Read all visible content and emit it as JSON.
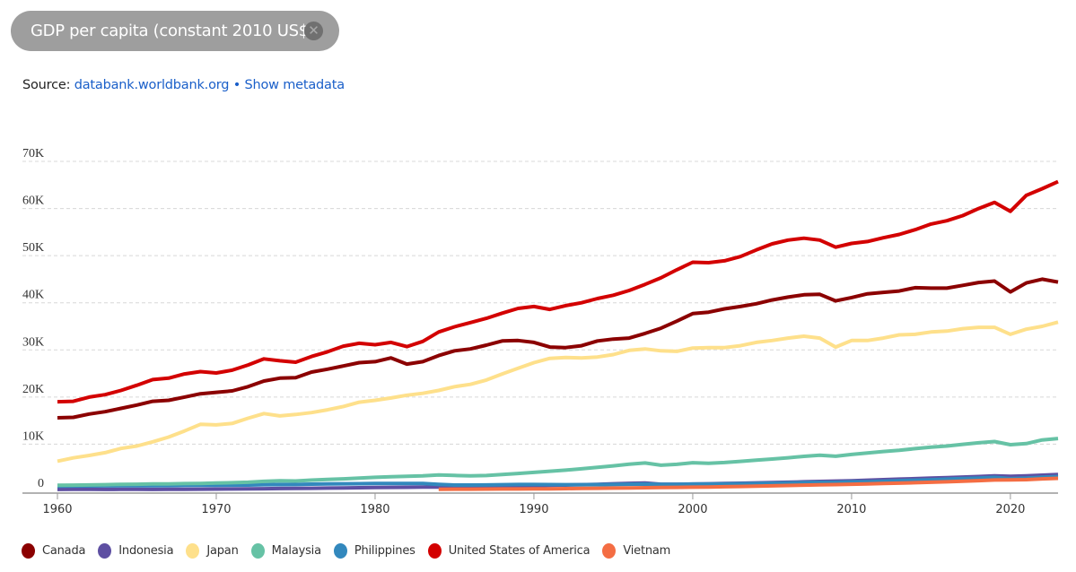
{
  "header": {
    "indicator_chip_label": "GDP per capita (constant 2010 US$)",
    "close_icon": "close-icon"
  },
  "source": {
    "prefix": "Source:",
    "link_label": "databank.worldbank.org",
    "separator": "•",
    "metadata_label": "Show metadata"
  },
  "chart_data": {
    "type": "line",
    "title": "GDP per capita (constant 2010 US$)",
    "xlabel": "",
    "ylabel": "",
    "xlim": [
      1960,
      2023
    ],
    "ylim": [
      0,
      70000
    ],
    "grid": true,
    "legend_position": "bottom-left",
    "x_ticks": [
      1960,
      1970,
      1980,
      1990,
      2000,
      2010,
      2020
    ],
    "x_tick_labels": [
      "1960",
      "1970",
      "1980",
      "1990",
      "2000",
      "2010",
      "2020"
    ],
    "y_ticks": [
      0,
      10000,
      20000,
      30000,
      40000,
      50000,
      60000,
      70000
    ],
    "y_tick_labels": [
      "0",
      "10K",
      "20K",
      "30K",
      "40K",
      "50K",
      "60K",
      "70K"
    ],
    "x": [
      1960,
      1961,
      1962,
      1963,
      1964,
      1965,
      1966,
      1967,
      1968,
      1969,
      1970,
      1971,
      1972,
      1973,
      1974,
      1975,
      1976,
      1977,
      1978,
      1979,
      1980,
      1981,
      1982,
      1983,
      1984,
      1985,
      1986,
      1987,
      1988,
      1989,
      1990,
      1991,
      1992,
      1993,
      1994,
      1995,
      1996,
      1997,
      1998,
      1999,
      2000,
      2001,
      2002,
      2003,
      2004,
      2005,
      2006,
      2007,
      2008,
      2009,
      2010,
      2011,
      2012,
      2013,
      2014,
      2015,
      2016,
      2017,
      2018,
      2019,
      2020,
      2021,
      2022,
      2023
    ],
    "series": [
      {
        "name": "Canada",
        "color": "#8b0000",
        "values": [
          15600,
          15700,
          16400,
          16900,
          17600,
          18300,
          19100,
          19300,
          20000,
          20700,
          21000,
          21300,
          22200,
          23400,
          24000,
          24100,
          25300,
          25900,
          26600,
          27300,
          27500,
          28300,
          27000,
          27500,
          28800,
          29800,
          30200,
          31000,
          31900,
          32000,
          31600,
          30600,
          30500,
          30900,
          31900,
          32300,
          32500,
          33500,
          34600,
          36100,
          37700,
          38000,
          38700,
          39200,
          39800,
          40600,
          41200,
          41700,
          41800,
          40400,
          41100,
          41900,
          42200,
          42500,
          43200,
          43100,
          43100,
          43700,
          44300,
          44600,
          42300,
          44200,
          45000,
          44400
        ]
      },
      {
        "name": "Indonesia",
        "color": "#5e4fa2",
        "values": [
          400,
          410,
          415,
          405,
          410,
          410,
          400,
          410,
          430,
          460,
          480,
          500,
          530,
          560,
          590,
          610,
          640,
          680,
          710,
          760,
          800,
          840,
          860,
          890,
          920,
          950,
          970,
          1010,
          1060,
          1120,
          1190,
          1260,
          1330,
          1410,
          1490,
          1590,
          1690,
          1750,
          1500,
          1500,
          1550,
          1600,
          1660,
          1710,
          1780,
          1860,
          1930,
          2020,
          2100,
          2160,
          2250,
          2360,
          2470,
          2580,
          2680,
          2790,
          2900,
          3020,
          3140,
          3270,
          3180,
          3280,
          3430,
          3580
        ]
      },
      {
        "name": "Japan",
        "color": "#fee08b",
        "values": [
          6400,
          7100,
          7600,
          8200,
          9100,
          9600,
          10500,
          11500,
          12800,
          14200,
          14100,
          14400,
          15500,
          16500,
          16000,
          16300,
          16700,
          17300,
          18000,
          18900,
          19300,
          19800,
          20400,
          20800,
          21400,
          22200,
          22700,
          23600,
          24900,
          26100,
          27300,
          28200,
          28400,
          28300,
          28500,
          29000,
          29900,
          30200,
          29800,
          29700,
          30400,
          30500,
          30500,
          30900,
          31600,
          32000,
          32500,
          32900,
          32500,
          30600,
          32000,
          32000,
          32500,
          33200,
          33300,
          33800,
          34000,
          34500,
          34800,
          34800,
          33300,
          34400,
          35000,
          35900
        ]
      },
      {
        "name": "Malaysia",
        "color": "#66c2a5",
        "values": [
          1300,
          1320,
          1360,
          1400,
          1460,
          1510,
          1560,
          1580,
          1640,
          1680,
          1760,
          1830,
          1930,
          2110,
          2230,
          2190,
          2380,
          2510,
          2650,
          2820,
          2970,
          3090,
          3190,
          3300,
          3470,
          3360,
          3280,
          3350,
          3560,
          3780,
          4010,
          4260,
          4480,
          4780,
          5080,
          5410,
          5740,
          6020,
          5530,
          5720,
          6070,
          5940,
          6110,
          6350,
          6610,
          6840,
          7120,
          7420,
          7660,
          7430,
          7820,
          8150,
          8440,
          8700,
          9050,
          9370,
          9610,
          9960,
          10300,
          10560,
          9890,
          10120,
          10900,
          11200
        ]
      },
      {
        "name": "Philippines",
        "color": "#3288bd",
        "values": [
          1100,
          1130,
          1150,
          1160,
          1180,
          1190,
          1200,
          1220,
          1250,
          1270,
          1290,
          1310,
          1340,
          1400,
          1420,
          1450,
          1530,
          1560,
          1590,
          1610,
          1650,
          1650,
          1670,
          1650,
          1480,
          1330,
          1330,
          1350,
          1410,
          1450,
          1450,
          1420,
          1400,
          1400,
          1430,
          1450,
          1500,
          1540,
          1480,
          1490,
          1540,
          1550,
          1570,
          1610,
          1680,
          1720,
          1780,
          1860,
          1900,
          1900,
          2010,
          2050,
          2150,
          2260,
          2360,
          2460,
          2580,
          2700,
          2820,
          2960,
          2690,
          2800,
          2990,
          3140
        ]
      },
      {
        "name": "United States of America",
        "color": "#d30000",
        "values": [
          19000,
          19100,
          20000,
          20500,
          21400,
          22500,
          23700,
          24000,
          24900,
          25400,
          25100,
          25700,
          26800,
          28100,
          27700,
          27400,
          28600,
          29600,
          30800,
          31400,
          31100,
          31600,
          30700,
          31800,
          33800,
          34900,
          35800,
          36700,
          37800,
          38800,
          39200,
          38600,
          39400,
          40000,
          40900,
          41600,
          42600,
          43900,
          45300,
          47000,
          48600,
          48500,
          48900,
          49800,
          51200,
          52500,
          53300,
          53700,
          53300,
          51800,
          52600,
          53000,
          53800,
          54500,
          55500,
          56700,
          57400,
          58500,
          60000,
          61300,
          59400,
          62800,
          64200,
          65700
        ]
      },
      {
        "name": "Vietnam",
        "color": "#f46d43",
        "values": [
          null,
          null,
          null,
          null,
          null,
          null,
          null,
          null,
          null,
          null,
          null,
          null,
          null,
          null,
          null,
          null,
          null,
          null,
          null,
          null,
          null,
          null,
          null,
          null,
          430,
          450,
          460,
          470,
          490,
          500,
          520,
          540,
          570,
          600,
          640,
          680,
          730,
          770,
          800,
          830,
          870,
          920,
          970,
          1020,
          1090,
          1160,
          1230,
          1310,
          1370,
          1430,
          1500,
          1580,
          1650,
          1730,
          1820,
          1920,
          2020,
          2130,
          2260,
          2390,
          2440,
          2480,
          2650,
          2760
        ]
      }
    ]
  }
}
